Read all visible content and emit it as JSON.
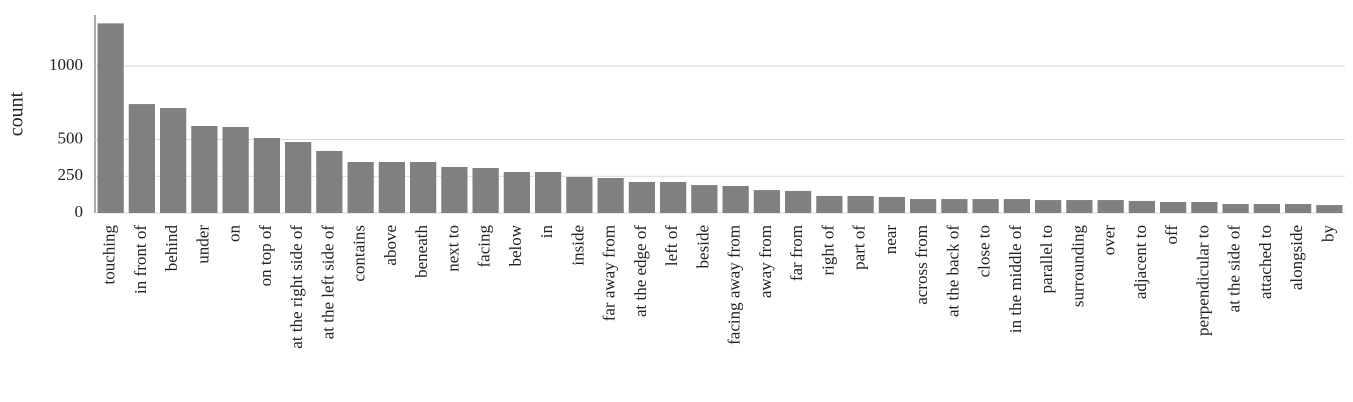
{
  "chart_data": {
    "type": "bar",
    "y_label": "count",
    "categories": [
      "touching",
      "in front of",
      "behind",
      "under",
      "on",
      "on top of",
      "at the right side of",
      "at the left side of",
      "contains",
      "above",
      "beneath",
      "next to",
      "facing",
      "below",
      "in",
      "inside",
      "far away from",
      "at the edge of",
      "left of",
      "beside",
      "facing away from",
      "away from",
      "far from",
      "right of",
      "part of",
      "near",
      "across from",
      "at the back of",
      "close to",
      "in the middle of",
      "parallel to",
      "surrounding",
      "over",
      "adjacent to",
      "off",
      "perpendicular to",
      "at the side of",
      "attached to",
      "alongside",
      "by"
    ],
    "values": [
      1290,
      741,
      714,
      592,
      585,
      510,
      483,
      422,
      347,
      347,
      347,
      313,
      306,
      279,
      279,
      245,
      238,
      211,
      211,
      190,
      184,
      156,
      150,
      116,
      116,
      109,
      95,
      95,
      95,
      95,
      88,
      88,
      88,
      82,
      75,
      75,
      61,
      61,
      61,
      54
    ],
    "color": "#808080",
    "ylim": [
      0,
      1350
    ],
    "yticks": [
      0,
      250,
      500,
      1000
    ],
    "grid": true
  }
}
